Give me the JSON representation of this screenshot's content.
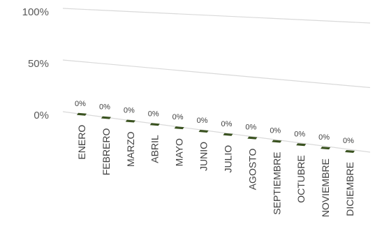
{
  "chart_data": {
    "type": "bar",
    "style": "3d-perspective",
    "categories": [
      "ENERO",
      "FEBRERO",
      "MARZO",
      "ABRIL",
      "MAYO",
      "JUNIO",
      "JULIO",
      "AGOSTO",
      "SEPTIEMBRE",
      "OCTUBRE",
      "NOVIEMBRE",
      "DICIEMBRE"
    ],
    "values": [
      0,
      0,
      0,
      0,
      0,
      0,
      0,
      0,
      0,
      0,
      0,
      0
    ],
    "data_labels": [
      "0%",
      "0%",
      "0%",
      "0%",
      "0%",
      "0%",
      "0%",
      "0%",
      "0%",
      "0%",
      "0%",
      "0%"
    ],
    "y_ticks": [
      {
        "value": 0,
        "label": "0%"
      },
      {
        "value": 0.5,
        "label": "50%"
      },
      {
        "value": 1,
        "label": "100%"
      }
    ],
    "ylim": [
      0,
      1
    ],
    "title": "",
    "xlabel": "",
    "ylabel": "",
    "grid": true,
    "legend": "none",
    "colors": {
      "bar": "#3a5220",
      "grid": "#d9d9d9",
      "axis_text": "#595959"
    }
  }
}
